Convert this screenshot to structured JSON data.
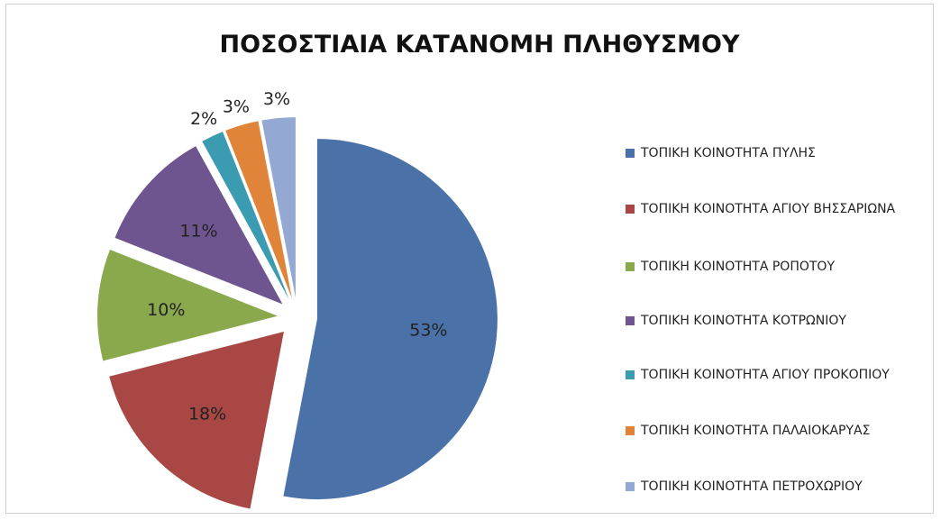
{
  "chart_data": {
    "type": "pie",
    "title": "ΠΟΣΟΣΤΙΑΙΑ ΚΑΤΑΝΟΜΗ ΠΛΗΘΥΣΜΟΥ",
    "categories": [
      "ΤΟΠΙΚΗ ΚΟΙΝΟΤΗΤΑ ΠΥΛΗΣ",
      "ΤΟΠΙΚΗ ΚΟΙΝΟΤΗΤΑ ΑΓΙΟΥ ΒΗΣΣΑΡΙΩΝΑ",
      "ΤΟΠΙΚΗ ΚΟΙΝΟΤΗΤΑ ΡΟΠΟΤΟΥ",
      "ΤΟΠΙΚΗ ΚΟΙΝΟΤΗΤΑ ΚΟΤΡΩΝΙΟΥ",
      "ΤΟΠΙΚΗ ΚΟΙΝΟΤΗΤΑ ΑΓΙΟΥ ΠΡΟΚΟΠΙΟΥ",
      "ΤΟΠΙΚΗ ΚΟΙΝΟΤΗΤΑ ΠΑΛΑΙΟΚΑΡΥΑΣ",
      "ΤΟΠΙΚΗ ΚΟΙΝΟΤΗΤΑ ΠΕΤΡΟΧΩΡΙΟΥ"
    ],
    "values": [
      53,
      18,
      10,
      11,
      2,
      3,
      3
    ],
    "value_labels": [
      "53%",
      "18%",
      "10%",
      "11%",
      "2%",
      "3%",
      "3%"
    ],
    "colors": [
      "#4a72a8",
      "#a84743",
      "#8aa84c",
      "#6f558f",
      "#3b9bb0",
      "#e0843a",
      "#93a9d3"
    ],
    "legend": "right"
  }
}
